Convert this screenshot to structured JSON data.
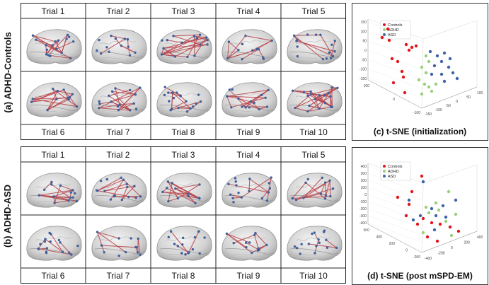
{
  "panels": {
    "a": {
      "label": "(a) ADHD-Controls",
      "top_trials": [
        "Trial 1",
        "Trial 2",
        "Trial 3",
        "Trial 4",
        "Trial 5"
      ],
      "bottom_trials": [
        "Trial 6",
        "Trial 7",
        "Trial 8",
        "Trial 9",
        "Trial 10"
      ]
    },
    "b": {
      "label": "(b) ADHD-ASD",
      "top_trials": [
        "Trial 1",
        "Trial 2",
        "Trial 3",
        "Trial 4",
        "Trial 5"
      ],
      "bottom_trials": [
        "Trial 6",
        "Trial 7",
        "Trial 8",
        "Trial 9",
        "Trial 10"
      ]
    },
    "c": {
      "caption": "(c) t-SNE (initialization)",
      "legend": [
        "Controls",
        "ADHD",
        "ASD"
      ],
      "z_ticks": [
        "150",
        "100",
        "50",
        "0",
        "-50",
        "-100",
        "-150"
      ],
      "x_ticks": [
        "100",
        "0",
        "-100"
      ],
      "y_ticks": [
        "-150",
        "-100",
        "-50",
        "0",
        "50",
        "100"
      ]
    },
    "d": {
      "caption": "(d) t-SNE (post mSPD-EM)",
      "legend": [
        "Controls",
        "ADHD",
        "ASD"
      ],
      "z_ticks": [
        "400",
        "300",
        "200",
        "100",
        "0",
        "-100",
        "-200",
        "-300",
        "-400"
      ],
      "x_ticks": [
        "600",
        "400",
        "200",
        "0",
        "-200"
      ],
      "y_ticks": [
        "-400",
        "-200",
        "0",
        "200",
        "400"
      ]
    }
  },
  "colors": {
    "controls": "#e4141b",
    "adhd": "#97d17a",
    "asd": "#3f63a8",
    "edge": "#b8454c",
    "node": "#3f5f9c"
  }
}
